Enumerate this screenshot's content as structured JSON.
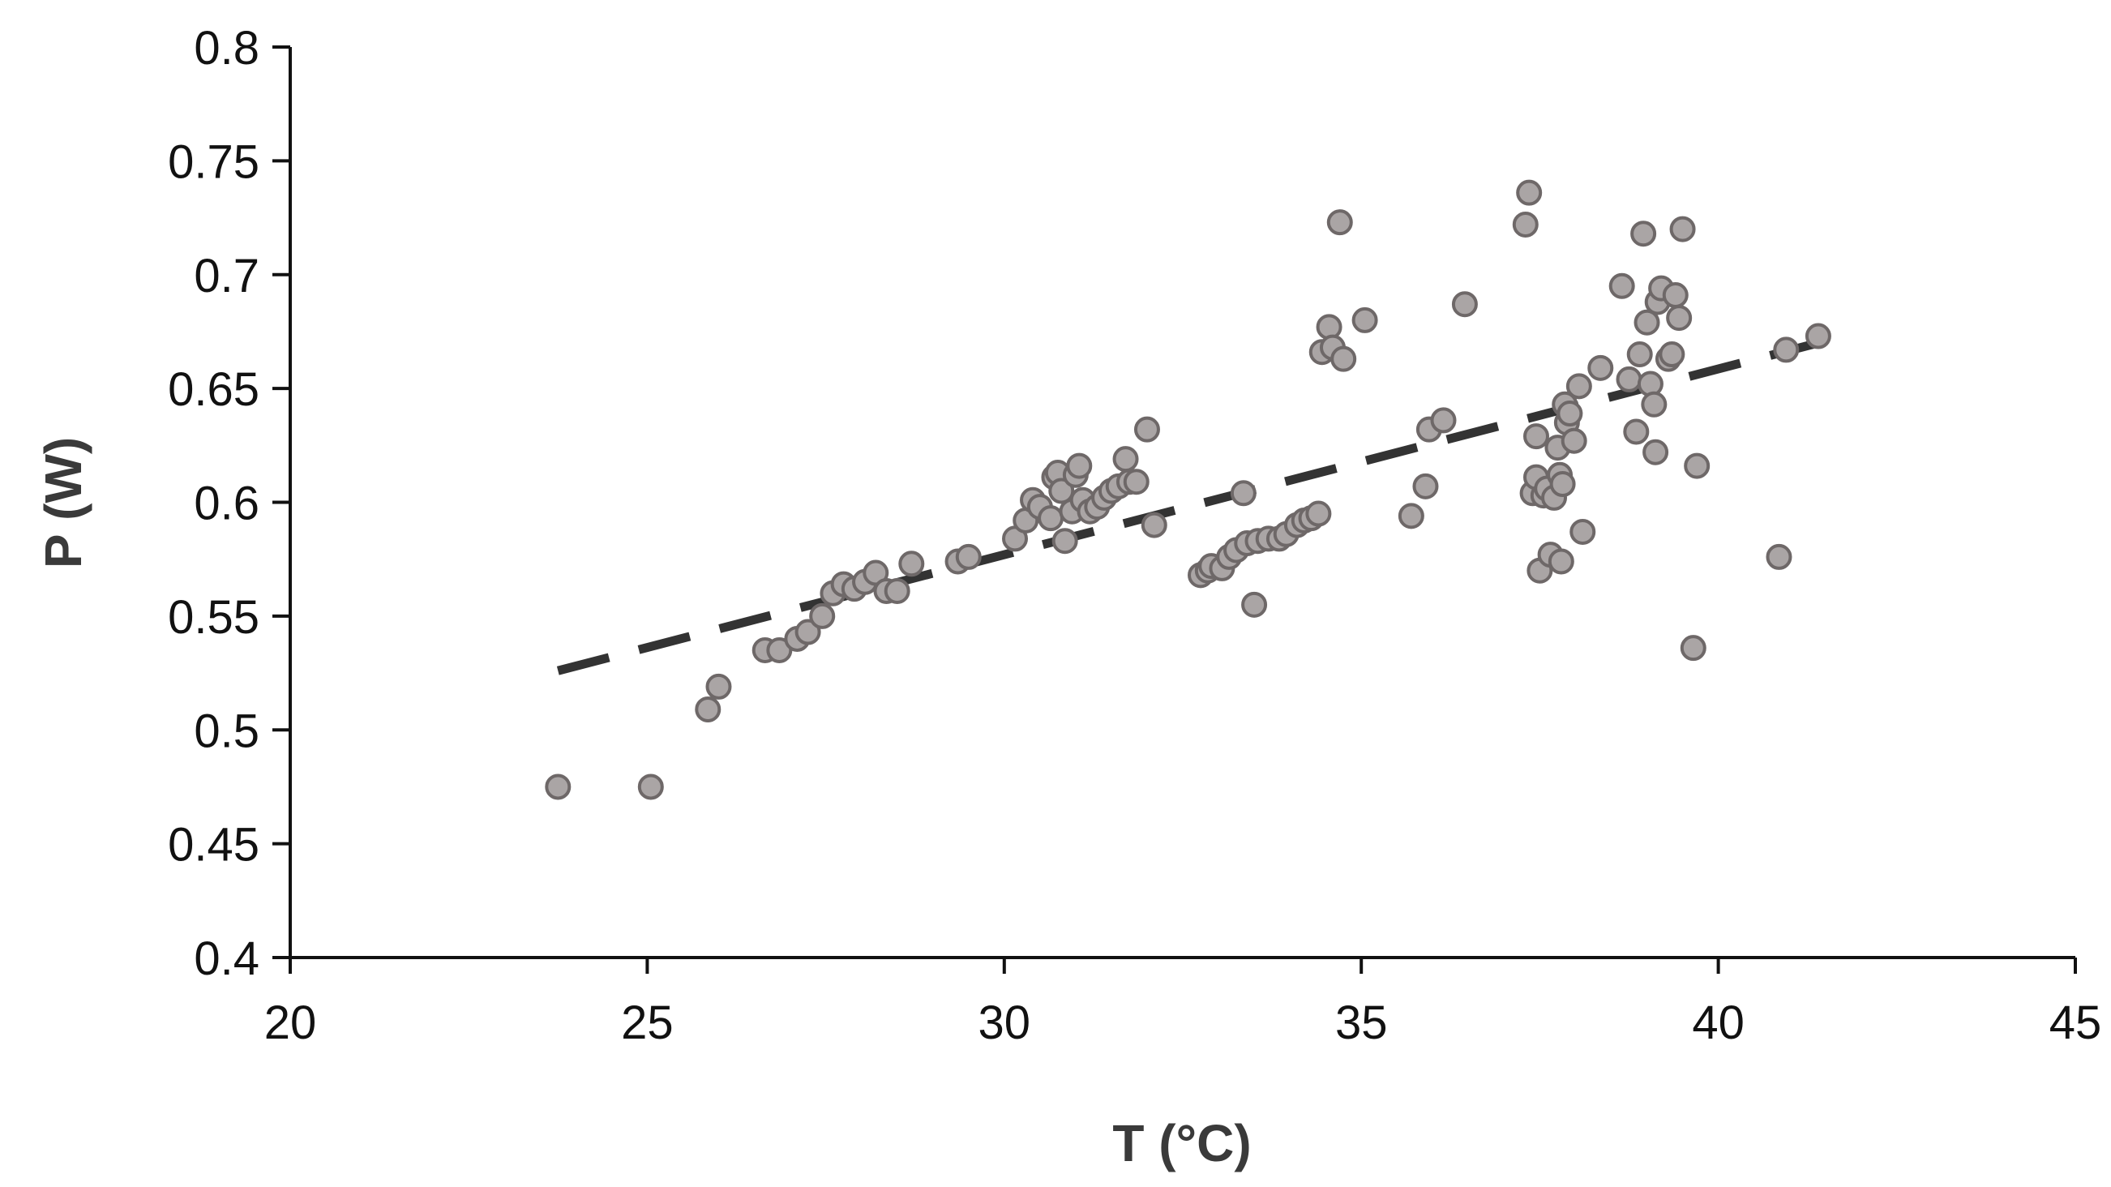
{
  "chart_data": {
    "type": "scatter",
    "title": "",
    "xlabel": "T (°C)",
    "ylabel": "P (W)",
    "xlim": [
      20,
      45
    ],
    "ylim": [
      0.4,
      0.8
    ],
    "x_ticks": [
      20,
      25,
      30,
      35,
      40,
      45
    ],
    "x_tick_labels": [
      "20",
      "25",
      "30",
      "35",
      "40",
      "45"
    ],
    "y_ticks": [
      0.4,
      0.45,
      0.5,
      0.55,
      0.6,
      0.65,
      0.7,
      0.75,
      0.8
    ],
    "y_tick_labels": [
      "0.4",
      "0.45",
      "0.5",
      "0.55",
      "0.6",
      "0.65",
      "0.7",
      "0.75",
      "0.8"
    ],
    "grid": false,
    "legend": "none",
    "colors": {
      "point_fill": "#aaa5a5",
      "point_stroke": "#6e6868",
      "trendline": "#333333",
      "axis": "#111111"
    },
    "series": [
      {
        "points": [
          [
            23.75,
            0.475
          ],
          [
            25.05,
            0.475
          ],
          [
            25.85,
            0.509
          ],
          [
            26.0,
            0.519
          ],
          [
            26.65,
            0.535
          ],
          [
            26.85,
            0.535
          ],
          [
            27.1,
            0.54
          ],
          [
            27.25,
            0.543
          ],
          [
            27.45,
            0.55
          ],
          [
            27.6,
            0.56
          ],
          [
            27.75,
            0.564
          ],
          [
            27.9,
            0.562
          ],
          [
            28.05,
            0.565
          ],
          [
            28.2,
            0.569
          ],
          [
            28.35,
            0.561
          ],
          [
            28.5,
            0.561
          ],
          [
            28.7,
            0.573
          ],
          [
            29.35,
            0.574
          ],
          [
            29.5,
            0.576
          ],
          [
            30.15,
            0.584
          ],
          [
            30.3,
            0.592
          ],
          [
            30.4,
            0.601
          ],
          [
            30.5,
            0.598
          ],
          [
            30.65,
            0.593
          ],
          [
            30.7,
            0.611
          ],
          [
            30.75,
            0.613
          ],
          [
            30.8,
            0.605
          ],
          [
            30.85,
            0.583
          ],
          [
            30.95,
            0.596
          ],
          [
            31.0,
            0.612
          ],
          [
            31.05,
            0.616
          ],
          [
            31.1,
            0.601
          ],
          [
            31.2,
            0.596
          ],
          [
            31.3,
            0.598
          ],
          [
            31.4,
            0.602
          ],
          [
            31.5,
            0.605
          ],
          [
            31.6,
            0.607
          ],
          [
            31.7,
            0.619
          ],
          [
            31.75,
            0.609
          ],
          [
            31.85,
            0.609
          ],
          [
            32.0,
            0.632
          ],
          [
            32.1,
            0.59
          ],
          [
            32.75,
            0.568
          ],
          [
            32.85,
            0.57
          ],
          [
            32.9,
            0.572
          ],
          [
            33.05,
            0.571
          ],
          [
            33.15,
            0.576
          ],
          [
            33.25,
            0.579
          ],
          [
            33.35,
            0.604
          ],
          [
            33.4,
            0.582
          ],
          [
            33.5,
            0.555
          ],
          [
            33.55,
            0.583
          ],
          [
            33.7,
            0.584
          ],
          [
            33.85,
            0.584
          ],
          [
            33.95,
            0.586
          ],
          [
            34.1,
            0.59
          ],
          [
            34.2,
            0.592
          ],
          [
            34.3,
            0.593
          ],
          [
            34.4,
            0.595
          ],
          [
            34.45,
            0.666
          ],
          [
            34.55,
            0.677
          ],
          [
            34.6,
            0.668
          ],
          [
            34.7,
            0.723
          ],
          [
            34.75,
            0.663
          ],
          [
            35.05,
            0.68
          ],
          [
            35.7,
            0.594
          ],
          [
            35.9,
            0.607
          ],
          [
            35.95,
            0.632
          ],
          [
            36.15,
            0.636
          ],
          [
            36.45,
            0.687
          ],
          [
            37.3,
            0.722
          ],
          [
            37.35,
            0.736
          ],
          [
            37.4,
            0.604
          ],
          [
            37.45,
            0.611
          ],
          [
            37.45,
            0.629
          ],
          [
            37.5,
            0.57
          ],
          [
            37.55,
            0.603
          ],
          [
            37.6,
            0.606
          ],
          [
            37.65,
            0.577
          ],
          [
            37.7,
            0.602
          ],
          [
            37.75,
            0.624
          ],
          [
            37.78,
            0.612
          ],
          [
            37.8,
            0.574
          ],
          [
            37.82,
            0.608
          ],
          [
            37.85,
            0.643
          ],
          [
            37.88,
            0.635
          ],
          [
            37.92,
            0.639
          ],
          [
            37.98,
            0.627
          ],
          [
            38.05,
            0.651
          ],
          [
            38.1,
            0.587
          ],
          [
            38.35,
            0.659
          ],
          [
            38.65,
            0.695
          ],
          [
            38.75,
            0.654
          ],
          [
            38.85,
            0.631
          ],
          [
            38.9,
            0.665
          ],
          [
            38.95,
            0.718
          ],
          [
            39.0,
            0.679
          ],
          [
            39.05,
            0.652
          ],
          [
            39.1,
            0.643
          ],
          [
            39.12,
            0.622
          ],
          [
            39.15,
            0.688
          ],
          [
            39.2,
            0.694
          ],
          [
            39.3,
            0.663
          ],
          [
            39.35,
            0.665
          ],
          [
            39.4,
            0.691
          ],
          [
            39.45,
            0.681
          ],
          [
            39.5,
            0.72
          ],
          [
            39.65,
            0.536
          ],
          [
            39.7,
            0.616
          ],
          [
            40.85,
            0.576
          ],
          [
            40.95,
            0.667
          ],
          [
            41.4,
            0.673
          ]
        ]
      }
    ],
    "trendline": {
      "style": "dashed",
      "points": [
        [
          23.75,
          0.526
        ],
        [
          41.4,
          0.67
        ]
      ]
    }
  }
}
